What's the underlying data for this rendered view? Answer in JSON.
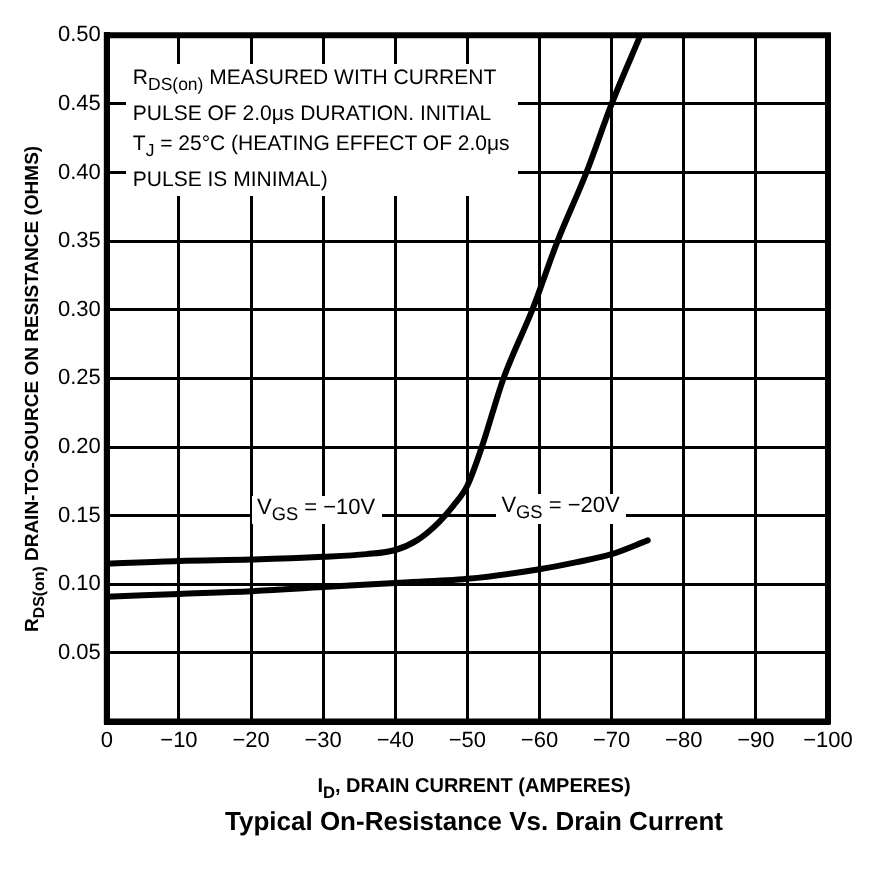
{
  "chart_data": {
    "type": "line",
    "title": "Typical On-Resistance Vs. Drain Current",
    "xlabel": "I$_{D}$, DRAIN CURRENT (AMPERES)",
    "ylabel": "R$_{DS(on)}$ DRAIN-TO-SOURCE ON RESISTANCE (OHMS)",
    "annotations": [
      "R$_{DS(on)}$ MEASURED WITH CURRENT PULSE OF 2.0μs DURATION. INITIAL T$_{J}$ = 25°C (HEATING EFFECT OF 2.0μs PULSE IS MINIMAL)"
    ],
    "series": [
      {
        "name": "V$_{GS}$ = −10V",
        "color": "#000000",
        "x": [
          0,
          -10,
          -20,
          -30,
          -36,
          -40,
          -43,
          -46,
          -48,
          -50,
          -52,
          -55,
          -59,
          -62.5,
          -66.5,
          -70,
          -74
        ],
        "values": [
          0.115,
          0.117,
          0.118,
          0.12,
          0.122,
          0.125,
          0.132,
          0.145,
          0.157,
          0.172,
          0.2,
          0.25,
          0.3,
          0.35,
          0.4,
          0.45,
          0.5
        ]
      },
      {
        "name": "V$_{GS}$ = −20V",
        "color": "#000000",
        "x": [
          0,
          -10,
          -20,
          -30,
          -40,
          -50,
          -60,
          -65,
          -70,
          -75
        ],
        "values": [
          0.091,
          0.093,
          0.095,
          0.098,
          0.101,
          0.104,
          0.111,
          0.116,
          0.122,
          0.132
        ]
      }
    ],
    "xlim": [
      0,
      -100
    ],
    "xticks": [
      0,
      -10,
      -20,
      -30,
      -40,
      -50,
      -60,
      -70,
      -80,
      -90,
      -100
    ],
    "ylim": [
      0,
      0.5
    ],
    "yticks": [
      0.05,
      {
        "value": 0.1,
        "label": "0.10"
      },
      0.15,
      {
        "value": 0.2,
        "label": "0.20"
      },
      0.25,
      {
        "value": 0.3,
        "label": "0.30"
      },
      0.35,
      {
        "value": 0.4,
        "label": "0.40"
      },
      0.45,
      {
        "value": 0.5,
        "label": "0.50"
      }
    ],
    "grid": true,
    "marker": "none",
    "line_style": "solid"
  }
}
